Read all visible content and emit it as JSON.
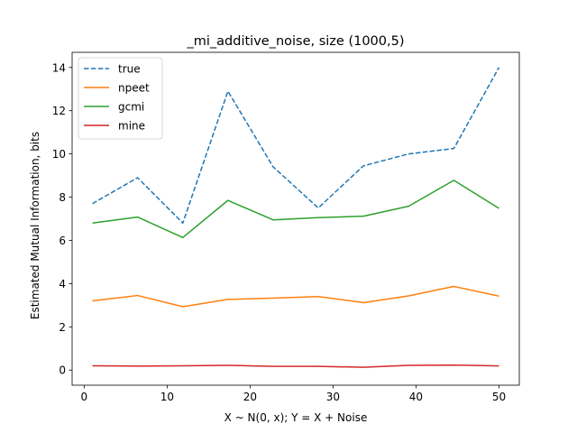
{
  "chart_data": {
    "type": "line",
    "title": "_mi_additive_noise, size (1000,5)",
    "xlabel": "X ~ N(0, x); Y = X + Noise",
    "ylabel": "Estimated Mutual Information, bits",
    "xlim": [
      -1.45,
      52.45
    ],
    "ylim": [
      -0.7,
      14.7
    ],
    "xticks": [
      0,
      10,
      20,
      30,
      40,
      50
    ],
    "yticks": [
      0,
      2,
      4,
      6,
      8,
      10,
      12,
      14
    ],
    "grid": false,
    "legend_position": "top-left",
    "x": [
      1,
      6.44,
      11.89,
      17.33,
      22.78,
      28.22,
      33.67,
      39.11,
      44.56,
      50
    ],
    "series": [
      {
        "name": "true",
        "color": "#1f77b4",
        "dashed": true,
        "values": [
          7.7,
          8.9,
          6.8,
          12.9,
          9.4,
          7.5,
          9.45,
          10.0,
          10.25,
          14.0
        ]
      },
      {
        "name": "npeet",
        "color": "#ff7f0e",
        "dashed": false,
        "values": [
          3.2,
          3.45,
          2.93,
          3.27,
          3.33,
          3.4,
          3.12,
          3.43,
          3.87,
          3.42
        ]
      },
      {
        "name": "gcmi",
        "color": "#2ca02c",
        "dashed": false,
        "values": [
          6.8,
          7.08,
          6.13,
          7.85,
          6.95,
          7.05,
          7.12,
          7.58,
          8.78,
          7.48
        ]
      },
      {
        "name": "mine",
        "color": "#d62728",
        "dashed": false,
        "values": [
          0.2,
          0.18,
          0.2,
          0.22,
          0.17,
          0.17,
          0.13,
          0.22,
          0.23,
          0.19
        ]
      }
    ]
  }
}
